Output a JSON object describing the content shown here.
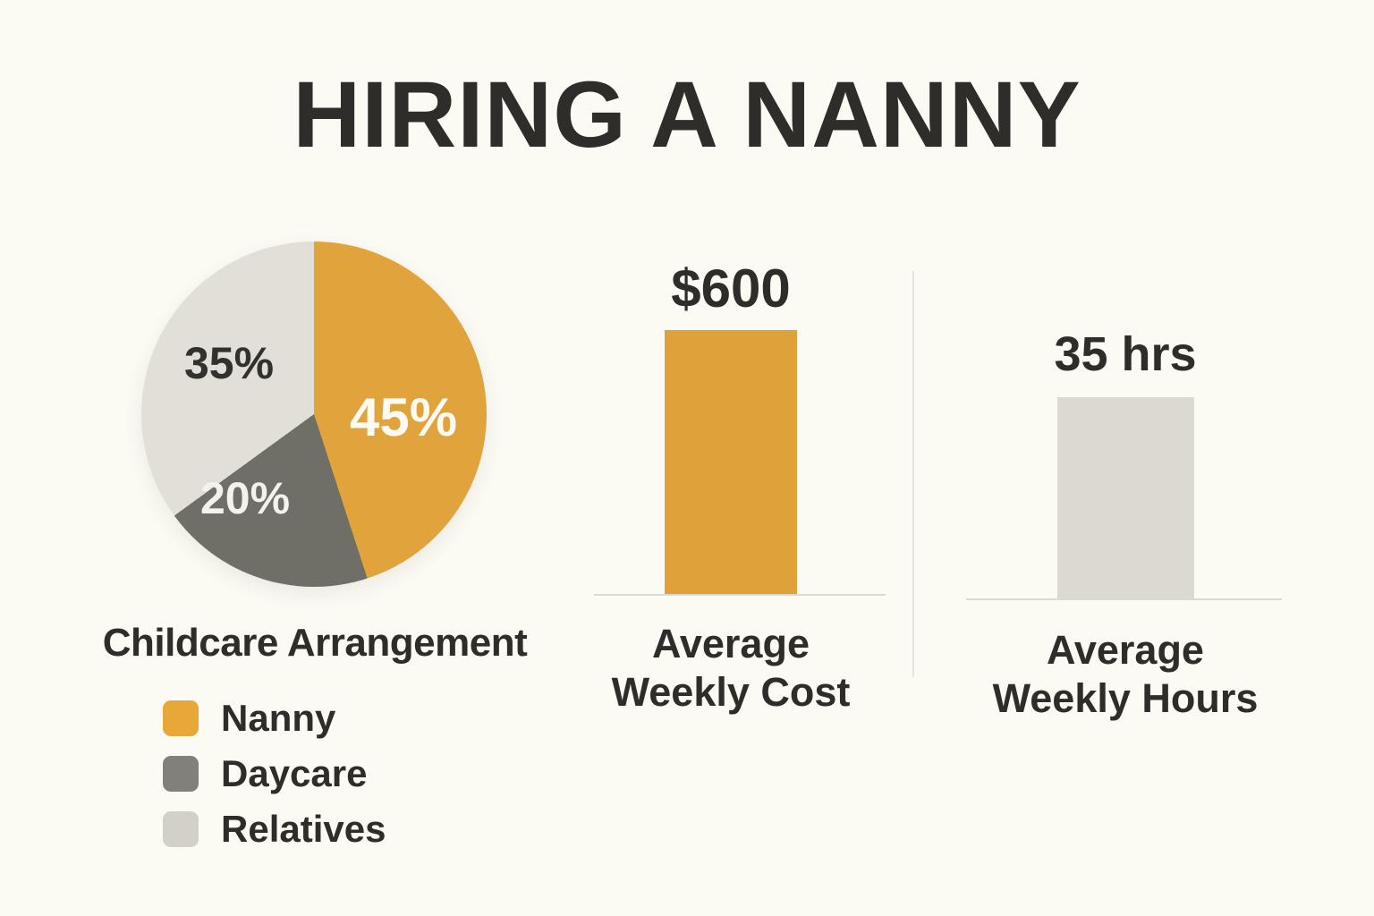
{
  "title": "HIRING A NANNY",
  "theme": {
    "background": "#FBFAF3",
    "text_color": "#2E2D29",
    "baseline_color": "#DCD9D2",
    "divider_color": "#E7E5DF"
  },
  "chart_data": [
    {
      "type": "pie",
      "title": "Childcare Arrangement",
      "slices": [
        {
          "label": "Nanny",
          "value": 45,
          "display": "45%",
          "color": "#E1A43C",
          "label_color": "#FBFAF4"
        },
        {
          "label": "Daycare",
          "value": 20,
          "display": "20%",
          "color": "#6F6E67",
          "label_color": "#F3F2EC"
        },
        {
          "label": "Relatives",
          "value": 35,
          "display": "35%",
          "color": "#E2DFD9",
          "label_color": "#32312D"
        }
      ],
      "legend": [
        {
          "label": "Nanny",
          "swatch_color": "#E7A838"
        },
        {
          "label": "Daycare",
          "swatch_color": "#81807A"
        },
        {
          "label": "Relatives",
          "swatch_color": "#D3D0CA"
        }
      ],
      "legend_position": "bottom-left",
      "start_angle_deg": 0,
      "direction": "clockwise"
    },
    {
      "type": "bar",
      "categories": [
        "Average Weekly Cost"
      ],
      "values": [
        600
      ],
      "value_labels": [
        "$600"
      ],
      "bar_color": "#DFA23B",
      "caption_lines": [
        "Average",
        "Weekly Cost"
      ],
      "axis": "none, single bar with baseline"
    },
    {
      "type": "bar",
      "categories": [
        "Average Weekly Hours"
      ],
      "values": [
        35
      ],
      "value_labels": [
        "35 hrs"
      ],
      "bar_color": "#DCD9D3",
      "caption_lines": [
        "Average",
        "Weekly Hours"
      ],
      "axis": "none, single bar with baseline"
    }
  ]
}
